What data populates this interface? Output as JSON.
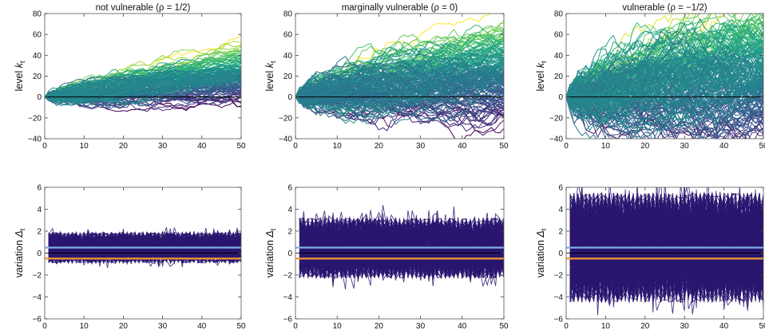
{
  "chart_data": [
    {
      "type": "line",
      "panel": "top-1",
      "title": "not vulnerable (ρ = 1/2)",
      "ylabel": "level k_t",
      "xlim": [
        0,
        50
      ],
      "ylim": [
        -40,
        80
      ],
      "xticks": [
        0,
        10,
        20,
        30,
        40,
        50
      ],
      "yticks": [
        -40,
        -20,
        0,
        20,
        40,
        60,
        80
      ],
      "rho": 0.5,
      "trend_end": 22,
      "spread_end": 13,
      "paths": 150,
      "palette": "viridis",
      "reference_line": 0
    },
    {
      "type": "line",
      "panel": "top-2",
      "title": "marginally vulnerable (ρ = 0)",
      "ylabel": "level k_t",
      "xlim": [
        0,
        50
      ],
      "ylim": [
        -40,
        80
      ],
      "xticks": [
        0,
        10,
        20,
        30,
        40,
        50
      ],
      "yticks": [
        -40,
        -20,
        0,
        20,
        40,
        60,
        80
      ],
      "rho": 0,
      "trend_end": 22,
      "spread_end": 25,
      "paths": 180,
      "palette": "viridis",
      "reference_line": 0
    },
    {
      "type": "line",
      "panel": "top-3",
      "title": "vulnerable (ρ = −1/2)",
      "ylabel": "level k_t",
      "xlim": [
        0,
        50
      ],
      "ylim": [
        -40,
        80
      ],
      "xticks": [
        0,
        10,
        20,
        30,
        40,
        50
      ],
      "yticks": [
        -40,
        -20,
        0,
        20,
        40,
        60,
        80
      ],
      "rho": -0.5,
      "trend_end": 22,
      "spread_end": 38,
      "paths": 200,
      "palette": "viridis",
      "reference_line": 0
    },
    {
      "type": "line",
      "panel": "bottom-1",
      "title": "",
      "ylabel": "variation Δ_t",
      "xlim": [
        0,
        50
      ],
      "ylim": [
        -6,
        6
      ],
      "xticks": [
        0,
        10,
        20,
        30,
        40,
        50
      ],
      "yticks": [
        -6,
        -4,
        -2,
        0,
        2,
        4,
        6
      ],
      "mean": 0.45,
      "band": [
        -0.9,
        1.9
      ],
      "spike": 0.6,
      "paths": 150,
      "line_color": "#2a1670",
      "reference_lines": [
        {
          "y": 0.5,
          "color": "#7fb0e4"
        },
        {
          "y": 0,
          "color": "#000000"
        },
        {
          "y": -0.5,
          "color": "#f39a2a"
        }
      ]
    },
    {
      "type": "line",
      "panel": "bottom-2",
      "title": "",
      "ylabel": "variation Δ_t",
      "xlim": [
        0,
        50
      ],
      "ylim": [
        -6,
        6
      ],
      "xticks": [
        0,
        10,
        20,
        30,
        40,
        50
      ],
      "yticks": [
        -6,
        -4,
        -2,
        0,
        2,
        4,
        6
      ],
      "mean": 0.45,
      "band": [
        -2.3,
        3.2
      ],
      "spike": 1.3,
      "paths": 180,
      "line_color": "#2a1670",
      "reference_lines": [
        {
          "y": 0.5,
          "color": "#7fb0e4"
        },
        {
          "y": 0,
          "color": "#000000"
        },
        {
          "y": -0.5,
          "color": "#f39a2a"
        }
      ]
    },
    {
      "type": "line",
      "panel": "bottom-3",
      "title": "",
      "ylabel": "variation Δ_t",
      "xlim": [
        0,
        50
      ],
      "ylim": [
        -6,
        6
      ],
      "xticks": [
        0,
        10,
        20,
        30,
        40,
        50
      ],
      "yticks": [
        -6,
        -4,
        -2,
        0,
        2,
        4,
        6
      ],
      "mean": 0.45,
      "band": [
        -4.5,
        5.5
      ],
      "spike": 1.5,
      "paths": 200,
      "line_color": "#2a1670",
      "reference_lines": [
        {
          "y": 0.5,
          "color": "#7fb0e4"
        },
        {
          "y": 0,
          "color": "#000000"
        },
        {
          "y": -0.5,
          "color": "#f39a2a"
        }
      ]
    }
  ]
}
